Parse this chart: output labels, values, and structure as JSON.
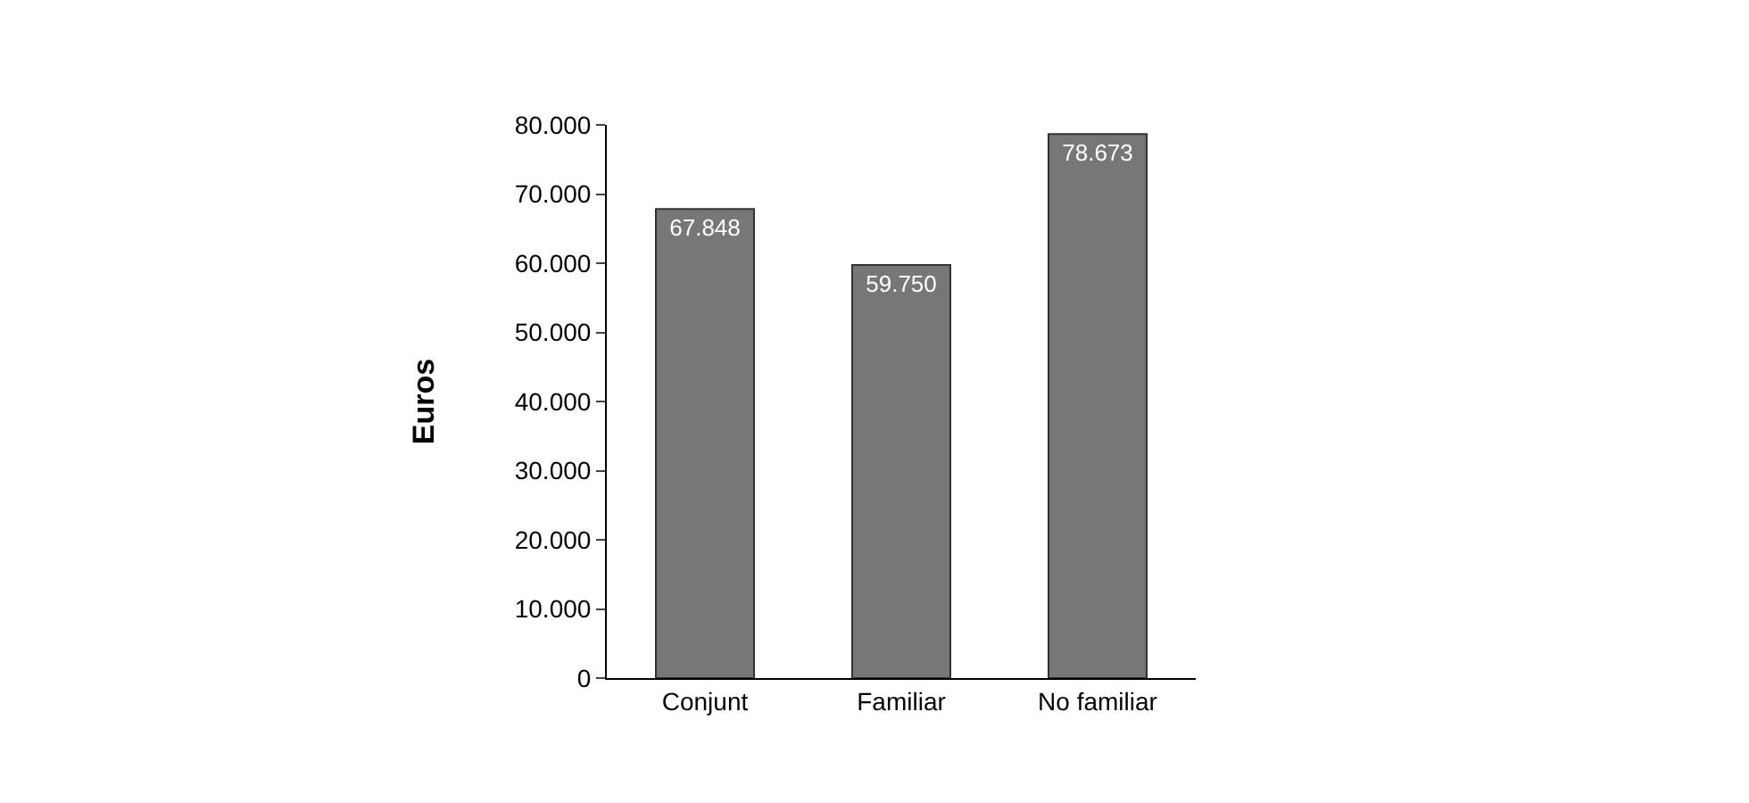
{
  "chart_data": {
    "type": "bar",
    "ylabel": "Euros",
    "categories": [
      "Conjunt",
      "Familiar",
      "No familiar"
    ],
    "values": [
      67848,
      59750,
      78673
    ],
    "value_labels": [
      "67.848",
      "59.750",
      "78.673"
    ],
    "color": "#777777",
    "ylim": [
      0,
      80000
    ],
    "yticks": [
      {
        "value": 0,
        "label": "0"
      },
      {
        "value": 10000,
        "label": "10.000"
      },
      {
        "value": 20000,
        "label": "20.000"
      },
      {
        "value": 30000,
        "label": "30.000"
      },
      {
        "value": 40000,
        "label": "40.000"
      },
      {
        "value": 50000,
        "label": "50.000"
      },
      {
        "value": 60000,
        "label": "60.000"
      },
      {
        "value": 70000,
        "label": "70.000"
      },
      {
        "value": 80000,
        "label": "80.000"
      }
    ],
    "orientation": "vertical"
  }
}
